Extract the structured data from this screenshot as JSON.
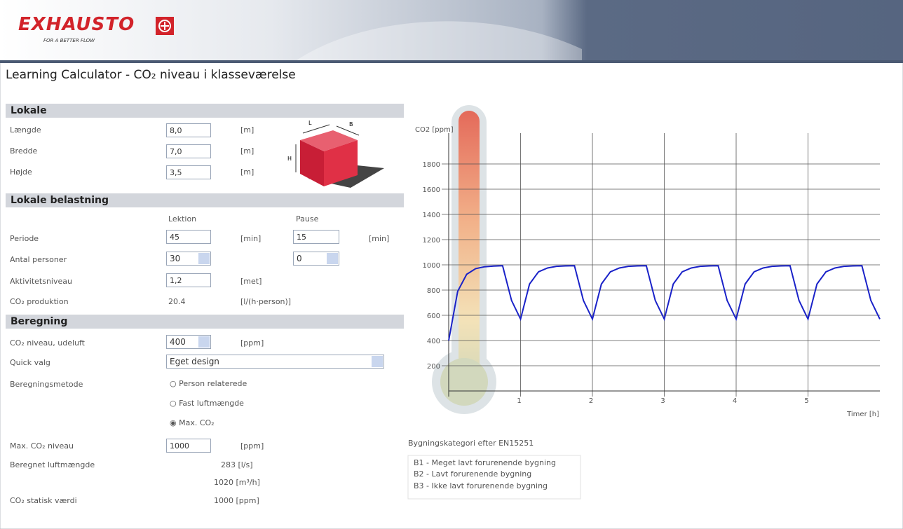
{
  "header": {
    "logo": "EXHAUSTO",
    "tagline": "FOR A BETTER FLOW"
  },
  "title": "Learning Calculator - CO₂ niveau i klasseværelse",
  "sections": [
    {
      "heading": "Lokale",
      "rows": [
        {
          "label": "Længde",
          "value": "8,0",
          "unit": "[m]"
        },
        {
          "label": "Bredde",
          "value": "7,0",
          "unit": "[m]"
        },
        {
          "label": "Højde",
          "value": "3,5",
          "unit": "[m]"
        }
      ]
    },
    {
      "heading": "Lokale belastning",
      "columns": [
        "Lektion",
        "Pause"
      ],
      "rows": [
        {
          "label": "Periode",
          "value": "45",
          "unit": "[min]",
          "value2": "15",
          "unit2": "[min]"
        },
        {
          "label": "Antal personer",
          "value": "30",
          "value2": "0"
        },
        {
          "label": "Aktivitetsniveau",
          "value": "1,2",
          "unit": "[met]"
        },
        {
          "label": "CO₂ produktion",
          "value": "20.4",
          "unit": "[l/(h·person)]"
        }
      ]
    },
    {
      "heading": "Beregning",
      "rows": [
        {
          "label": "CO₂ niveau, udeluft",
          "value": "400",
          "unit": "[ppm]"
        },
        {
          "label": "Quick valg",
          "value": "Eget design"
        },
        {
          "label": "Beregningsmetode",
          "options": [
            "Person relaterede",
            "Fast luftmængde",
            "Max. CO₂"
          ]
        },
        {
          "label": "Max. CO₂ niveau",
          "value": "1000",
          "unit": "[ppm]"
        },
        {
          "label": "Beregnet luftmængde",
          "values": [
            "283 [l/s]",
            "1020 [m³/h]"
          ]
        },
        {
          "label": "CO₂ statisk værdi",
          "value": "1000 [ppm]"
        }
      ]
    }
  ],
  "room_diagram": {
    "labels": [
      "L",
      "B",
      "H"
    ]
  },
  "chart": {
    "type": "line",
    "y_label": "CO2 [ppm]",
    "x_label": "Timer [h]",
    "x": [
      0,
      0.125,
      0.25,
      0.375,
      0.5,
      0.625,
      0.75,
      0.875,
      1,
      1.125,
      1.25,
      1.375,
      1.5,
      1.625,
      1.75,
      1.875,
      2,
      2.125,
      2.25,
      2.375,
      2.5,
      2.625,
      2.75,
      2.875,
      3,
      3.125,
      3.25,
      3.375,
      3.5,
      3.625,
      3.75,
      3.875,
      4,
      4.125,
      4.25,
      4.375,
      4.5,
      4.625,
      4.75,
      4.875,
      5,
      5.125,
      5.25,
      5.375,
      5.5,
      5.625,
      5.75,
      5.875,
      6
    ],
    "series": [
      {
        "color": "#1a22c8",
        "values": [
          400,
          790,
          925,
          970,
          985,
          990,
          993,
          717,
          570,
          848,
          945,
          975,
          988,
          992,
          993,
          717,
          570,
          848,
          945,
          975,
          988,
          992,
          993,
          717,
          570,
          848,
          945,
          975,
          988,
          992,
          993,
          717,
          570,
          848,
          945,
          975,
          988,
          992,
          993,
          717,
          570,
          848,
          945,
          975,
          988,
          992,
          993,
          717,
          570
        ]
      }
    ],
    "xlim": [
      0,
      6
    ],
    "ylim": [
      0,
      2000
    ],
    "xticks": [
      1,
      2,
      3,
      4,
      5
    ],
    "yticks": [
      200,
      400,
      600,
      800,
      1000,
      1200,
      1400,
      1600,
      1800
    ],
    "grid": true
  },
  "legend_box": {
    "title": "Bygningskategori efter EN15251",
    "items": [
      "B1 - Meget lavt forurenende bygning",
      "B2 - Lavt forurenende bygning",
      "B3 - Ikke lavt forurenende bygning"
    ]
  }
}
